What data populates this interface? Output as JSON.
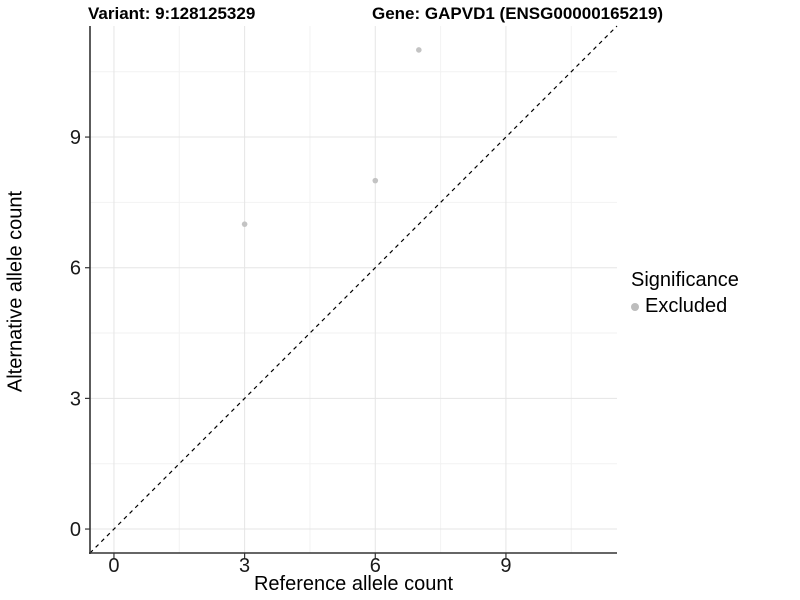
{
  "chart_data": {
    "type": "scatter",
    "title_left": "Variant: 9:128125329",
    "title_right": "Gene: GAPVD1 (ENSG00000165219)",
    "xlabel": "Reference allele count",
    "ylabel": "Alternative allele count",
    "xlim": [
      -0.55,
      11.55
    ],
    "ylim": [
      -0.55,
      11.55
    ],
    "xticks": [
      0,
      3,
      6,
      9
    ],
    "yticks": [
      0,
      3,
      6,
      9
    ],
    "minor_ticks": [
      1.5,
      4.5,
      7.5,
      10.5
    ],
    "grid": true,
    "series": [
      {
        "name": "Excluded",
        "color": "#c3c3c3",
        "points": [
          {
            "x": 3,
            "y": 7
          },
          {
            "x": 6,
            "y": 8
          },
          {
            "x": 7,
            "y": 11
          }
        ]
      }
    ],
    "identity_line": {
      "style": "dashed",
      "color": "#000000",
      "slope": 1,
      "intercept": 0
    },
    "legend": {
      "position": "right",
      "title": "Significance",
      "entries": [
        {
          "label": "Excluded",
          "color": "#bdbdbd"
        }
      ]
    },
    "style": {
      "background": "#ffffff",
      "grid_major": "#e5e5e5",
      "grid_minor": "#f2f2f2",
      "axis_line": "#333333",
      "tick_label_color": "#1a1a1a"
    }
  }
}
